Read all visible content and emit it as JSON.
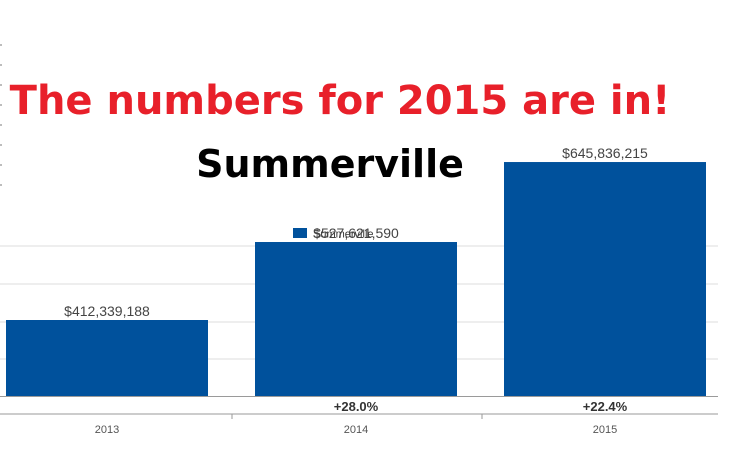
{
  "headline": {
    "text": "The numbers for 2015 are in!",
    "color": "#e8202a"
  },
  "subheadline": {
    "text": "Summerville",
    "color": "#000000"
  },
  "chart_data": {
    "type": "bar",
    "categories": [
      "2013",
      "2014",
      "2015"
    ],
    "series": [
      {
        "name": "Summerville",
        "color": "#00519c",
        "values": [
          412339188,
          527621590,
          645836215
        ]
      }
    ],
    "data_labels": [
      "$412,339,188",
      "$527,621,590",
      "$645,836,215"
    ],
    "change_labels": [
      "",
      "+28.0%",
      "+22.4%"
    ],
    "legend": "top-center",
    "grid": true
  }
}
